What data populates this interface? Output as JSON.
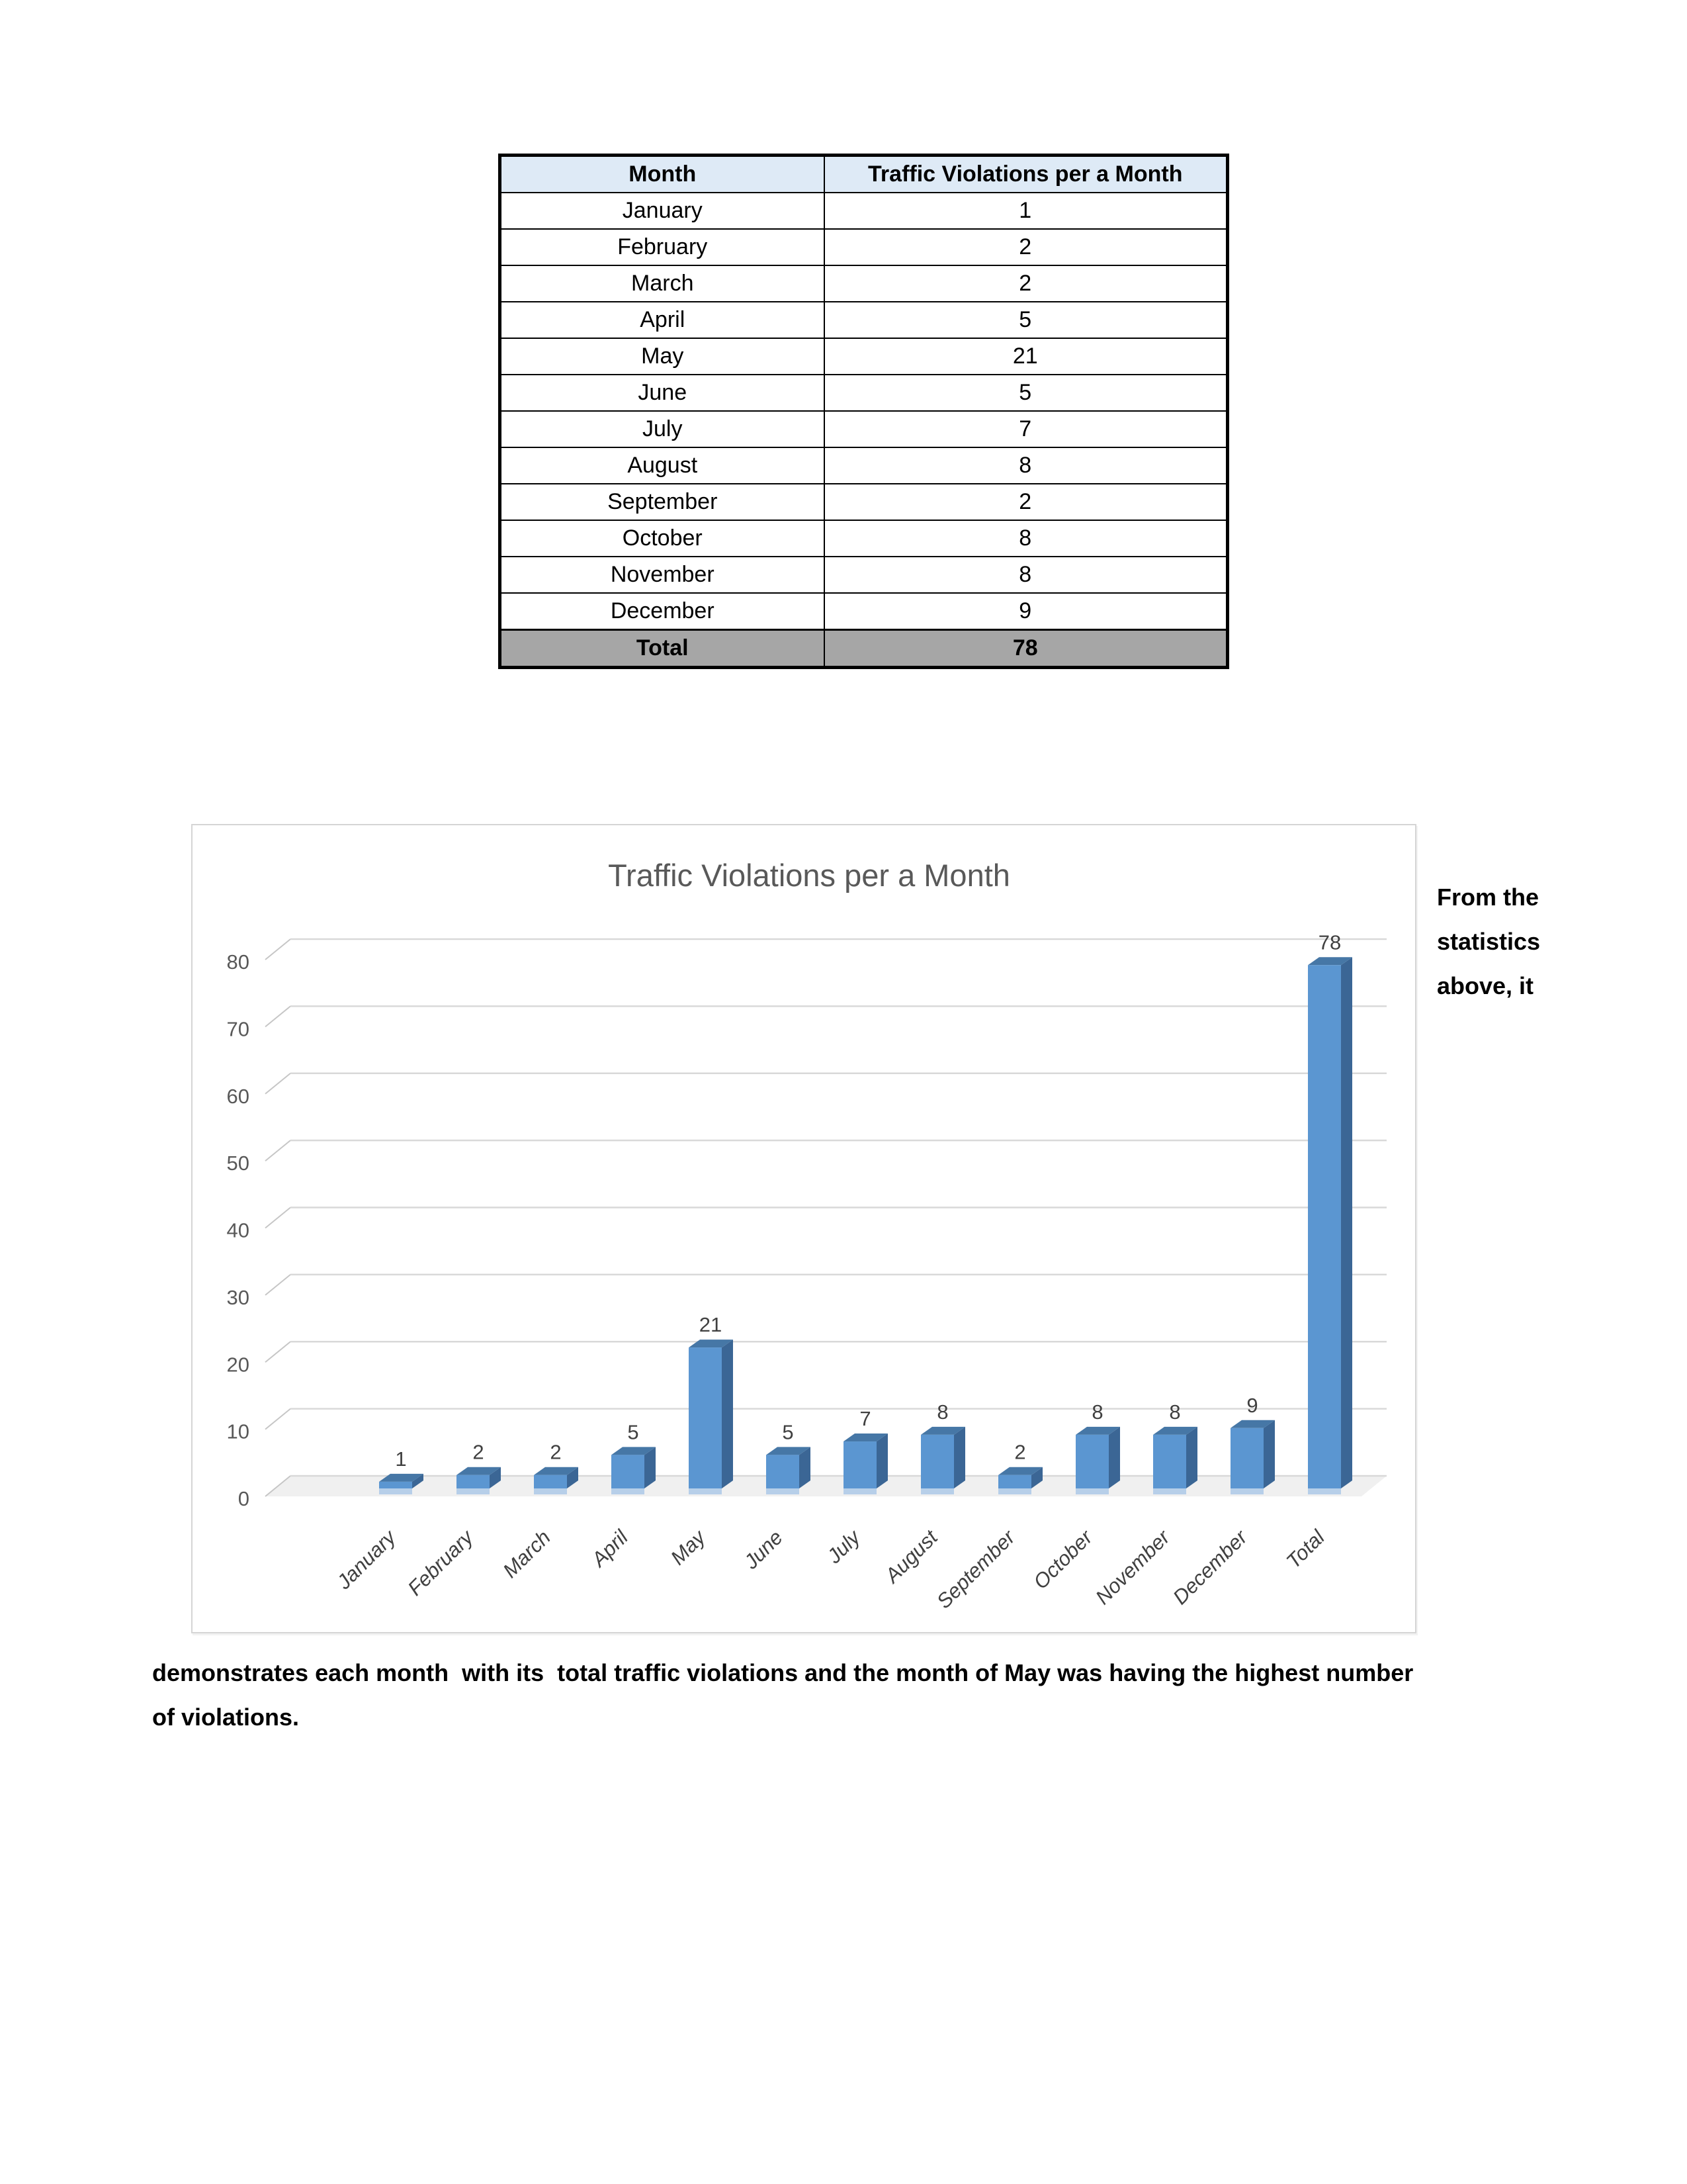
{
  "table": {
    "headers": [
      "Month",
      "Traffic Violations per a Month"
    ],
    "rows": [
      [
        "January",
        "1"
      ],
      [
        "February",
        "2"
      ],
      [
        "March",
        "2"
      ],
      [
        "April",
        "5"
      ],
      [
        "May",
        "21"
      ],
      [
        "June",
        "5"
      ],
      [
        "July",
        "7"
      ],
      [
        "August",
        "8"
      ],
      [
        "September",
        "2"
      ],
      [
        "October",
        "8"
      ],
      [
        "November",
        "8"
      ],
      [
        "December",
        "9"
      ]
    ],
    "total_row": [
      "Total",
      "78"
    ],
    "header_bg": "#DEEAF6",
    "total_bg": "#A6A6A6"
  },
  "chart_data": {
    "type": "bar",
    "variant": "3d-column",
    "title": "Traffic Violations per a Month",
    "categories": [
      "January",
      "February",
      "March",
      "April",
      "May",
      "June",
      "July",
      "August",
      "September",
      "October",
      "November",
      "December",
      "Total"
    ],
    "values": [
      1,
      2,
      2,
      5,
      21,
      5,
      7,
      8,
      2,
      8,
      8,
      9,
      78
    ],
    "data_labels": [
      "1",
      "2",
      "2",
      "5",
      "21",
      "5",
      "7",
      "8",
      "2",
      "8",
      "8",
      "9",
      "78"
    ],
    "ylabel": "",
    "xlabel": "",
    "ylim": [
      0,
      80
    ],
    "ytick_step": 10,
    "yticks": [
      "0",
      "10",
      "20",
      "30",
      "40",
      "50",
      "60",
      "70",
      "80"
    ],
    "grid": true,
    "legend": "none",
    "colors": {
      "bar_front": "#5B96D1",
      "bar_side": "#3B6695",
      "bar_top": "#4677A6",
      "bar_base_sliver": "#B7CFE9",
      "gridline": "#D9D9D9",
      "grid_diagonal": "#C6C6C6",
      "floor": "#F0F0F0",
      "title_text": "#595959",
      "axis_text": "#595959",
      "label_text": "#404040"
    }
  },
  "paragraph": {
    "right_fragment": "From the statistics above, it",
    "bottom_fragment": "demonstrates each month  with its  total traffic violations and the month of May was having the highest number of violations."
  }
}
